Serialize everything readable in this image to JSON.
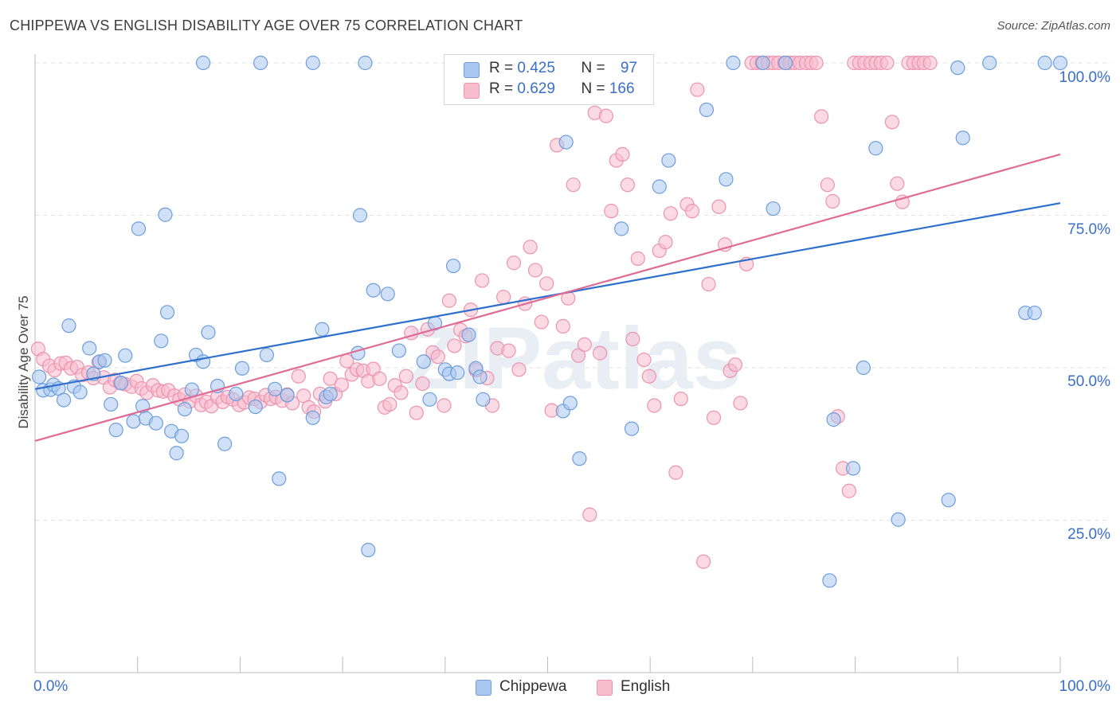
{
  "header": {
    "title": "CHIPPEWA VS ENGLISH DISABILITY AGE OVER 75 CORRELATION CHART",
    "source": "Source: ZipAtlas.com"
  },
  "watermark": "ZIPatlas",
  "legend_top": {
    "rows": [
      {
        "r_label": "R = ",
        "r_value": "0.425",
        "n_label": "N = ",
        "n_value": "97"
      },
      {
        "r_label": "R = ",
        "r_value": "0.629",
        "n_label": "N = ",
        "n_value": "166"
      }
    ]
  },
  "legend_bottom": [
    "Chippewa",
    "English"
  ],
  "axis": {
    "ylabel": "Disability Age Over 75",
    "x_left_label": "0.0%",
    "x_right_label": "100.0%",
    "y_tick_labels": [
      "100.0%",
      "75.0%",
      "50.0%",
      "25.0%"
    ]
  },
  "colors": {
    "chippewa_fill": "#a9c8f0",
    "chippewa_stroke": "#6f9ddc",
    "chippewa_line": "#2e6fcc",
    "english_fill": "#f7bccd",
    "english_stroke": "#ec93ae",
    "english_line": "#e06b95",
    "tick_label": "#3a6fc9"
  },
  "chart_data": {
    "type": "scatter",
    "title": "CHIPPEWA VS ENGLISH DISABILITY AGE OVER 75 CORRELATION CHART",
    "xlabel": "",
    "ylabel": "Disability Age Over 75",
    "xlim": [
      0,
      100
    ],
    "ylim": [
      0,
      102
    ],
    "y_ticks": [
      25,
      50,
      75,
      100
    ],
    "grid": true,
    "series": [
      {
        "name": "Chippewa",
        "r": 0.425,
        "n": 97,
        "trend": {
          "x": [
            0,
            100
          ],
          "y": [
            46.5,
            77.0
          ]
        },
        "points": [
          [
            0.4,
            48.5
          ],
          [
            0.8,
            46.3
          ],
          [
            1.5,
            46.4
          ],
          [
            1.8,
            47.2
          ],
          [
            2.3,
            46.6
          ],
          [
            2.8,
            44.7
          ],
          [
            3.3,
            56.9
          ],
          [
            3.8,
            46.9
          ],
          [
            4.4,
            46.0
          ],
          [
            5.3,
            53.2
          ],
          [
            5.7,
            49.0
          ],
          [
            6.3,
            51.0
          ],
          [
            6.8,
            51.2
          ],
          [
            7.4,
            44.0
          ],
          [
            7.9,
            39.8
          ],
          [
            8.4,
            47.5
          ],
          [
            8.8,
            52.0
          ],
          [
            9.6,
            41.2
          ],
          [
            10.1,
            72.8
          ],
          [
            10.5,
            43.7
          ],
          [
            10.8,
            41.7
          ],
          [
            11.8,
            40.9
          ],
          [
            12.3,
            54.4
          ],
          [
            12.7,
            75.1
          ],
          [
            12.9,
            59.1
          ],
          [
            13.3,
            39.6
          ],
          [
            13.8,
            36.0
          ],
          [
            14.3,
            38.8
          ],
          [
            14.6,
            43.2
          ],
          [
            15.3,
            46.4
          ],
          [
            15.7,
            52.1
          ],
          [
            16.4,
            51.0
          ],
          [
            16.9,
            55.8
          ],
          [
            17.8,
            47.0
          ],
          [
            18.5,
            37.5
          ],
          [
            19.6,
            45.7
          ],
          [
            20.2,
            49.9
          ],
          [
            21.5,
            43.6
          ],
          [
            22.6,
            52.1
          ],
          [
            23.4,
            46.5
          ],
          [
            23.8,
            31.8
          ],
          [
            24.6,
            45.5
          ],
          [
            27.1,
            41.8
          ],
          [
            28.0,
            56.3
          ],
          [
            28.4,
            45.2
          ],
          [
            28.8,
            45.7
          ],
          [
            31.5,
            52.4
          ],
          [
            31.7,
            75.0
          ],
          [
            32.5,
            20.1
          ],
          [
            33.0,
            62.7
          ],
          [
            34.4,
            62.1
          ],
          [
            35.5,
            52.8
          ],
          [
            37.9,
            51.0
          ],
          [
            38.5,
            44.8
          ],
          [
            39.0,
            57.3
          ],
          [
            40.0,
            49.7
          ],
          [
            40.4,
            49.0
          ],
          [
            40.8,
            66.7
          ],
          [
            41.2,
            49.2
          ],
          [
            42.3,
            55.4
          ],
          [
            43.0,
            49.9
          ],
          [
            43.4,
            48.5
          ],
          [
            43.7,
            44.8
          ],
          [
            51.5,
            42.9
          ],
          [
            51.8,
            87.0
          ],
          [
            52.2,
            44.2
          ],
          [
            53.1,
            35.1
          ],
          [
            57.2,
            72.8
          ],
          [
            58.2,
            40.0
          ],
          [
            60.9,
            79.7
          ],
          [
            61.8,
            84.0
          ],
          [
            65.5,
            92.3
          ],
          [
            67.4,
            80.9
          ],
          [
            68.1,
            100
          ],
          [
            72.0,
            76.1
          ],
          [
            73.2,
            100
          ],
          [
            77.9,
            41.5
          ],
          [
            79.8,
            33.5
          ],
          [
            80.8,
            50.0
          ],
          [
            82.0,
            86.0
          ],
          [
            84.2,
            25.1
          ],
          [
            89.1,
            28.3
          ],
          [
            90.5,
            87.7
          ],
          [
            93.1,
            100
          ],
          [
            96.6,
            59.0
          ],
          [
            97.5,
            59.0
          ],
          [
            100.0,
            100
          ],
          [
            90.0,
            99.2
          ],
          [
            77.5,
            15.1
          ],
          [
            47.8,
            100
          ],
          [
            27.1,
            100
          ],
          [
            32.2,
            100
          ],
          [
            22.0,
            100
          ],
          [
            16.4,
            100
          ],
          [
            98.5,
            100
          ],
          [
            71.0,
            100
          ],
          [
            52.0,
            100
          ]
        ]
      },
      {
        "name": "English",
        "r": 0.629,
        "n": 166,
        "trend": {
          "x": [
            0,
            100
          ],
          "y": [
            38.0,
            85.0
          ]
        },
        "points": [
          [
            0.3,
            53.1
          ],
          [
            0.8,
            51.4
          ],
          [
            1.4,
            50.3
          ],
          [
            1.9,
            49.6
          ],
          [
            2.5,
            50.7
          ],
          [
            3.0,
            50.8
          ],
          [
            3.5,
            49.9
          ],
          [
            4.1,
            50.1
          ],
          [
            4.6,
            48.8
          ],
          [
            5.2,
            49.2
          ],
          [
            5.7,
            48.3
          ],
          [
            6.2,
            50.9
          ],
          [
            6.7,
            48.4
          ],
          [
            7.3,
            46.8
          ],
          [
            7.8,
            48.0
          ],
          [
            8.3,
            47.5
          ],
          [
            8.8,
            47.3
          ],
          [
            9.4,
            46.9
          ],
          [
            9.9,
            47.8
          ],
          [
            10.4,
            46.6
          ],
          [
            10.9,
            45.9
          ],
          [
            11.5,
            47.1
          ],
          [
            12.0,
            46.3
          ],
          [
            12.5,
            46.1
          ],
          [
            13.0,
            46.3
          ],
          [
            13.6,
            45.4
          ],
          [
            14.1,
            44.8
          ],
          [
            14.6,
            45.6
          ],
          [
            15.1,
            44.5
          ],
          [
            15.7,
            45.4
          ],
          [
            16.2,
            43.9
          ],
          [
            16.7,
            44.4
          ],
          [
            17.2,
            43.7
          ],
          [
            17.8,
            45.2
          ],
          [
            18.3,
            44.4
          ],
          [
            18.8,
            45.2
          ],
          [
            19.3,
            44.8
          ],
          [
            19.9,
            43.9
          ],
          [
            20.4,
            44.3
          ],
          [
            20.9,
            45.1
          ],
          [
            21.4,
            44.9
          ],
          [
            22.0,
            44.4
          ],
          [
            22.5,
            45.5
          ],
          [
            23.0,
            44.9
          ],
          [
            23.5,
            45.2
          ],
          [
            24.1,
            44.6
          ],
          [
            24.6,
            45.6
          ],
          [
            25.1,
            44.2
          ],
          [
            25.7,
            48.6
          ],
          [
            26.2,
            45.4
          ],
          [
            26.7,
            43.5
          ],
          [
            27.2,
            42.8
          ],
          [
            27.8,
            45.7
          ],
          [
            28.3,
            44.5
          ],
          [
            28.8,
            48.2
          ],
          [
            29.3,
            45.7
          ],
          [
            29.9,
            47.2
          ],
          [
            30.4,
            51.1
          ],
          [
            30.9,
            48.9
          ],
          [
            31.4,
            49.7
          ],
          [
            32.0,
            49.5
          ],
          [
            32.5,
            47.8
          ],
          [
            33.0,
            49.8
          ],
          [
            33.6,
            48.2
          ],
          [
            34.1,
            43.5
          ],
          [
            34.6,
            44.0
          ],
          [
            35.1,
            47.1
          ],
          [
            35.7,
            45.9
          ],
          [
            36.2,
            48.6
          ],
          [
            36.7,
            55.7
          ],
          [
            37.2,
            42.6
          ],
          [
            37.8,
            47.4
          ],
          [
            38.3,
            56.3
          ],
          [
            38.8,
            52.5
          ],
          [
            39.3,
            51.8
          ],
          [
            39.9,
            43.8
          ],
          [
            40.4,
            61.0
          ],
          [
            40.9,
            53.6
          ],
          [
            41.5,
            56.2
          ],
          [
            42.0,
            55.2
          ],
          [
            42.5,
            59.5
          ],
          [
            43.0,
            49.6
          ],
          [
            43.6,
            64.3
          ],
          [
            44.1,
            48.3
          ],
          [
            44.6,
            43.8
          ],
          [
            45.1,
            53.2
          ],
          [
            45.7,
            61.6
          ],
          [
            46.2,
            52.8
          ],
          [
            46.7,
            67.2
          ],
          [
            47.2,
            49.7
          ],
          [
            47.8,
            60.5
          ],
          [
            48.3,
            69.8
          ],
          [
            48.8,
            66.0
          ],
          [
            49.4,
            57.5
          ],
          [
            49.9,
            63.8
          ],
          [
            50.4,
            43.0
          ],
          [
            50.9,
            86.5
          ],
          [
            51.5,
            56.8
          ],
          [
            52.0,
            61.4
          ],
          [
            52.5,
            80.0
          ],
          [
            53.0,
            52.0
          ],
          [
            53.6,
            53.8
          ],
          [
            54.1,
            25.9
          ],
          [
            54.6,
            91.8
          ],
          [
            55.1,
            52.4
          ],
          [
            55.7,
            91.3
          ],
          [
            56.2,
            75.7
          ],
          [
            56.7,
            84.0
          ],
          [
            57.3,
            85.0
          ],
          [
            57.8,
            80.0
          ],
          [
            58.3,
            54.7
          ],
          [
            58.8,
            67.9
          ],
          [
            59.4,
            51.3
          ],
          [
            59.9,
            48.6
          ],
          [
            60.4,
            43.8
          ],
          [
            60.9,
            69.2
          ],
          [
            61.5,
            70.6
          ],
          [
            62.0,
            75.3
          ],
          [
            62.5,
            32.8
          ],
          [
            63.0,
            44.9
          ],
          [
            63.6,
            76.8
          ],
          [
            64.1,
            75.7
          ],
          [
            64.6,
            95.6
          ],
          [
            65.2,
            18.2
          ],
          [
            65.7,
            63.7
          ],
          [
            66.2,
            41.8
          ],
          [
            66.7,
            76.4
          ],
          [
            67.3,
            70.2
          ],
          [
            67.8,
            49.5
          ],
          [
            68.3,
            50.5
          ],
          [
            68.8,
            44.2
          ],
          [
            69.4,
            67.0
          ],
          [
            69.9,
            100
          ],
          [
            70.4,
            100
          ],
          [
            70.9,
            100
          ],
          [
            71.5,
            100
          ],
          [
            72.0,
            100
          ],
          [
            72.5,
            100
          ],
          [
            73.1,
            100
          ],
          [
            73.6,
            100
          ],
          [
            74.1,
            100
          ],
          [
            74.6,
            100
          ],
          [
            75.2,
            100
          ],
          [
            75.7,
            100
          ],
          [
            76.2,
            100
          ],
          [
            76.7,
            91.2
          ],
          [
            77.3,
            80.0
          ],
          [
            77.8,
            77.3
          ],
          [
            78.3,
            42.0
          ],
          [
            78.8,
            33.5
          ],
          [
            79.4,
            29.8
          ],
          [
            79.9,
            100
          ],
          [
            80.4,
            100
          ],
          [
            80.9,
            100
          ],
          [
            81.5,
            100
          ],
          [
            82.0,
            100
          ],
          [
            82.5,
            100
          ],
          [
            83.1,
            100
          ],
          [
            83.6,
            90.3
          ],
          [
            84.1,
            80.2
          ],
          [
            84.6,
            77.2
          ],
          [
            85.2,
            100
          ],
          [
            85.7,
            100
          ],
          [
            86.2,
            100
          ],
          [
            86.7,
            100
          ],
          [
            87.3,
            100
          ]
        ]
      }
    ]
  }
}
